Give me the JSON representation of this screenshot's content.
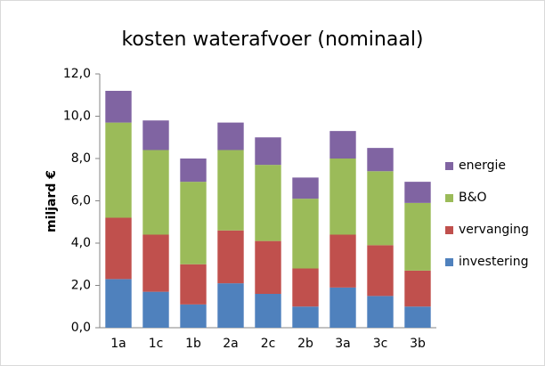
{
  "chart_data": {
    "type": "stacked-bar",
    "title": "kosten waterafvoer (nominaal)",
    "y_label": "miljard  €",
    "categories": [
      "1a",
      "1c",
      "1b",
      "2a",
      "2c",
      "2b",
      "3a",
      "3c",
      "3b"
    ],
    "series": [
      {
        "name": "investering",
        "color": "#4f81bd",
        "values": [
          2.3,
          1.7,
          1.1,
          2.1,
          1.6,
          1.0,
          1.9,
          1.5,
          1.0
        ]
      },
      {
        "name": "vervanging",
        "color": "#c0504d",
        "values": [
          2.9,
          2.7,
          1.9,
          2.5,
          2.5,
          1.8,
          2.5,
          2.4,
          1.7
        ]
      },
      {
        "name": "B&O",
        "color": "#9bbb59",
        "values": [
          4.5,
          4.0,
          3.9,
          3.8,
          3.6,
          3.3,
          3.6,
          3.5,
          3.2
        ]
      },
      {
        "name": "energie",
        "color": "#8064a2",
        "values": [
          1.5,
          1.4,
          1.1,
          1.3,
          1.3,
          1.0,
          1.3,
          1.1,
          1.0
        ]
      }
    ],
    "ylim": [
      0,
      12
    ],
    "yticks": [
      {
        "value": 0,
        "label": "0,0"
      },
      {
        "value": 2,
        "label": "2,0"
      },
      {
        "value": 4,
        "label": "4,0"
      },
      {
        "value": 6,
        "label": "6,0"
      },
      {
        "value": 8,
        "label": "8,0"
      },
      {
        "value": 10,
        "label": "10,0"
      },
      {
        "value": 12,
        "label": "12,0"
      }
    ],
    "legend": "right"
  }
}
